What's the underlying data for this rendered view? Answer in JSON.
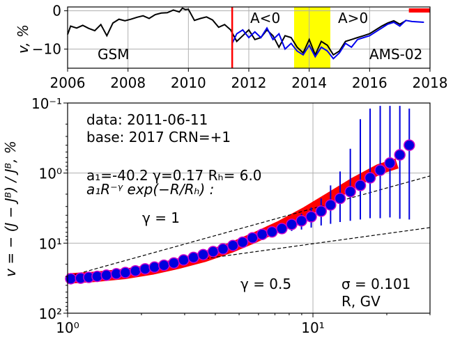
{
  "colors": {
    "gsm_line": "#000000",
    "ams_line": "#0000ee",
    "highlight_band": "#ffff00",
    "event_marker": "#ff0000",
    "model_band": "#ff0000",
    "point_face": "#0000dd",
    "point_edge": "#cc00cc",
    "grid": "#b0b0b0",
    "guide_lines": "#000000"
  },
  "chart_data": [
    {
      "type": "line",
      "xlim": [
        2006,
        2018
      ],
      "ylim": [
        -15,
        1
      ],
      "xticks": [
        "2006",
        "2008",
        "2010",
        "2012",
        "2014",
        "2016",
        "2018"
      ],
      "yticks": [
        "0",
        "−10"
      ],
      "ylabel": "v, %",
      "grid": true,
      "annotations": {
        "a_neg": "A<0",
        "a_pos": "A>0",
        "gsm_label": "GSM",
        "ams_label": "AMS-02"
      },
      "event_line_x": 2011.45,
      "highlight_span": [
        2013.5,
        2014.7
      ],
      "marker_bar": [
        2017.3,
        2018.0
      ],
      "series": [
        {
          "name": "GSM",
          "x": [
            2006.0,
            2006.1,
            2006.3,
            2006.5,
            2006.7,
            2006.9,
            2007.1,
            2007.3,
            2007.5,
            2007.7,
            2007.9,
            2008.1,
            2008.3,
            2008.5,
            2008.7,
            2008.9,
            2009.1,
            2009.3,
            2009.5,
            2009.7,
            2009.8,
            2009.9,
            2010.0,
            2010.2,
            2010.4,
            2010.6,
            2010.8,
            2011.0,
            2011.2,
            2011.4,
            2011.6,
            2011.8,
            2012.0,
            2012.2,
            2012.4,
            2012.6,
            2012.8,
            2013.0,
            2013.2,
            2013.4,
            2013.6,
            2013.8,
            2014.0,
            2014.2,
            2014.4,
            2014.6,
            2014.8,
            2015.0,
            2015.2,
            2015.4,
            2015.6,
            2015.8,
            2016.0,
            2016.2,
            2016.4,
            2016.6,
            2016.8,
            2017.0,
            2017.2
          ],
          "y": [
            -6.2,
            -4.0,
            -4.5,
            -3.8,
            -4.6,
            -5.2,
            -3.6,
            -6.5,
            -3.2,
            -2.2,
            -2.6,
            -2.2,
            -1.7,
            -1.3,
            -2.0,
            -1.0,
            -0.6,
            -0.5,
            0.2,
            -0.3,
            0.7,
            0.3,
            0.4,
            -2.5,
            -2.0,
            -1.6,
            -2.4,
            -4.3,
            -3.6,
            -5.0,
            -8.0,
            -6.5,
            -5.0,
            -7.5,
            -7.0,
            -5.0,
            -6.5,
            -9.5,
            -6.5,
            -7.0,
            -9.5,
            -11.0,
            -7.5,
            -11.5,
            -8.0,
            -9.0,
            -11.5,
            -10.5,
            -8.0,
            -7.5,
            -7.0,
            -6.5,
            -6.0,
            -5.0,
            -4.0,
            -3.2,
            -2.6,
            -3.5,
            -2.6
          ]
        },
        {
          "name": "AMS-02",
          "x": [
            2011.45,
            2011.6,
            2011.8,
            2012.0,
            2012.2,
            2012.4,
            2012.6,
            2012.8,
            2013.0,
            2013.2,
            2013.4,
            2013.6,
            2013.8,
            2014.0,
            2014.2,
            2014.4,
            2014.6,
            2014.8,
            2015.0,
            2015.2,
            2015.4,
            2015.6,
            2015.8,
            2016.0,
            2016.2,
            2016.4,
            2016.6,
            2016.8,
            2017.0,
            2017.2,
            2017.4,
            2017.8
          ],
          "y": [
            -8.5,
            -6.0,
            -5.0,
            -7.0,
            -5.5,
            -7.0,
            -4.5,
            -7.5,
            -6.0,
            -10.0,
            -8.5,
            -10.5,
            -11.5,
            -9.0,
            -12.0,
            -9.5,
            -10.5,
            -12.5,
            -11.0,
            -8.5,
            -9.5,
            -7.5,
            -7.0,
            -6.5,
            -5.5,
            -4.5,
            -3.5,
            -3.0,
            -4.0,
            -2.5,
            -2.8,
            -3.0
          ]
        }
      ]
    },
    {
      "type": "scatter",
      "xscale": "log",
      "xlim": [
        1,
        30
      ],
      "ylim_decades": [
        -1,
        2
      ],
      "y_axis_inverted": true,
      "xticks": [
        "10⁰",
        "10¹"
      ],
      "yticks": [
        "10⁻¹",
        "10⁰",
        "10¹",
        "10²"
      ],
      "ylabel": "v = − (J − Jᴮ) / Jᴮ, %",
      "xlabel": "R, GV",
      "grid": true,
      "annotations": {
        "data_date": "data: 2011-06-11",
        "base_line": "base: 2017   CRN=+1",
        "params_line": "a₁=-40.2  γ=0.17  Rₕ= 6.0",
        "model_line": "a₁R⁻ᵞ exp(−R/Rₕ) :",
        "gamma_1": "γ = 1",
        "gamma_05": "γ = 0.5",
        "sigma": "σ = 0.101"
      },
      "points": {
        "R": [
          1.03,
          1.13,
          1.22,
          1.32,
          1.44,
          1.58,
          1.72,
          1.89,
          2.07,
          2.26,
          2.47,
          2.71,
          2.97,
          3.26,
          3.57,
          3.92,
          4.3,
          4.72,
          5.17,
          5.67,
          6.21,
          6.81,
          7.47,
          8.19,
          8.98,
          9.84,
          10.8,
          11.8,
          12.9,
          14.2,
          15.6,
          17.1,
          18.8,
          20.6,
          22.6,
          24.7
        ],
        "v": [
          32.2,
          31.6,
          30.8,
          29.8,
          28.7,
          27.4,
          26.3,
          24.9,
          23.3,
          22.0,
          20.7,
          19.2,
          17.4,
          16.0,
          14.6,
          13.2,
          12.1,
          10.8,
          9.7,
          8.4,
          7.5,
          6.9,
          6.2,
          5.4,
          4.8,
          4.2,
          3.5,
          2.85,
          2.3,
          1.84,
          1.5,
          1.17,
          0.91,
          0.72,
          0.55,
          0.4
        ],
        "err_upper": [
          null,
          null,
          null,
          null,
          null,
          null,
          null,
          null,
          null,
          null,
          null,
          null,
          null,
          null,
          null,
          null,
          null,
          null,
          null,
          null,
          7.0,
          6.2,
          5.3,
          4.5,
          3.8,
          3.1,
          2.3,
          1.5,
          0.95,
          0.45,
          0.17,
          0.12,
          0.11,
          0.11,
          0.11,
          0.12
        ],
        "err_lower": [
          null,
          null,
          null,
          null,
          null,
          null,
          null,
          null,
          null,
          null,
          null,
          null,
          null,
          null,
          null,
          null,
          null,
          null,
          null,
          null,
          7.9,
          7.6,
          7.2,
          6.7,
          6.4,
          6.0,
          5.6,
          5.3,
          5.0,
          4.8,
          4.6,
          4.4,
          4.4,
          4.3,
          4.5,
          4.6
        ]
      },
      "model_band": {
        "R": [
          1.0,
          1.3,
          1.7,
          2.2,
          2.8,
          3.6,
          4.6,
          5.8,
          7.4,
          9.4,
          11.8,
          14.8,
          18.6,
          22.0
        ],
        "v": [
          32.0,
          30.2,
          27.6,
          23.9,
          19.8,
          15.7,
          11.7,
          8.3,
          5.6,
          3.55,
          2.2,
          1.35,
          0.88,
          0.73
        ]
      },
      "guide_lines": [
        {
          "name": "γ = 1",
          "R": [
            1.0,
            30.0
          ],
          "v": [
            30.0,
            1.1
          ]
        },
        {
          "name": "γ = 0.5",
          "R": [
            1.0,
            30.0
          ],
          "v": [
            31.0,
            6.0
          ]
        }
      ]
    }
  ]
}
